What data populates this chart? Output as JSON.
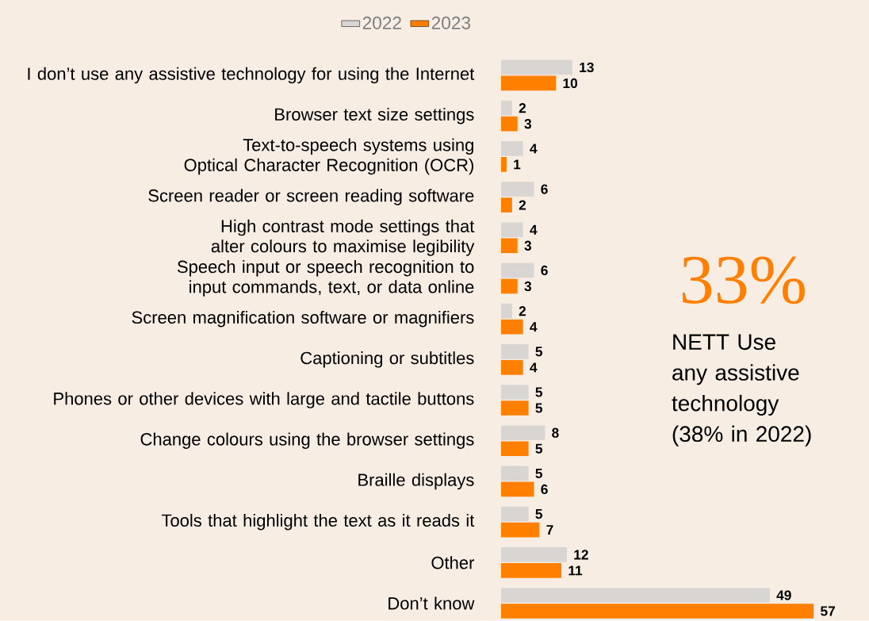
{
  "chart_data": {
    "type": "bar",
    "orientation": "horizontal",
    "categories": [
      "I don’t use any assistive technology for using the Internet",
      "Browser text size settings",
      "Text-to-speech systems using Optical Character Recognition (OCR)",
      "Screen reader or screen reading software",
      "High contrast mode settings that alter colours to maximise legibility",
      "Speech input or speech recognition to input commands, text, or data online",
      "Screen magnification software or magnifiers",
      "Captioning or subtitles",
      "Phones or other devices with large and tactile buttons",
      "Change colours using the browser settings",
      "Braille displays",
      "Tools that highlight the text as it reads it",
      "Other",
      "Don’t know"
    ],
    "series": [
      {
        "name": "2022",
        "color": "#d9d5d2",
        "values": [
          13,
          2,
          4,
          6,
          4,
          6,
          2,
          5,
          5,
          8,
          5,
          5,
          12,
          49
        ]
      },
      {
        "name": "2023",
        "color": "#ff7f00",
        "values": [
          10,
          3,
          1,
          2,
          3,
          3,
          4,
          4,
          5,
          5,
          6,
          7,
          11,
          57
        ]
      }
    ],
    "data_labels": true,
    "legend": "top",
    "annotations": [
      "33%",
      "NETT Use any assistive technology (38% in 2022)"
    ]
  }
}
